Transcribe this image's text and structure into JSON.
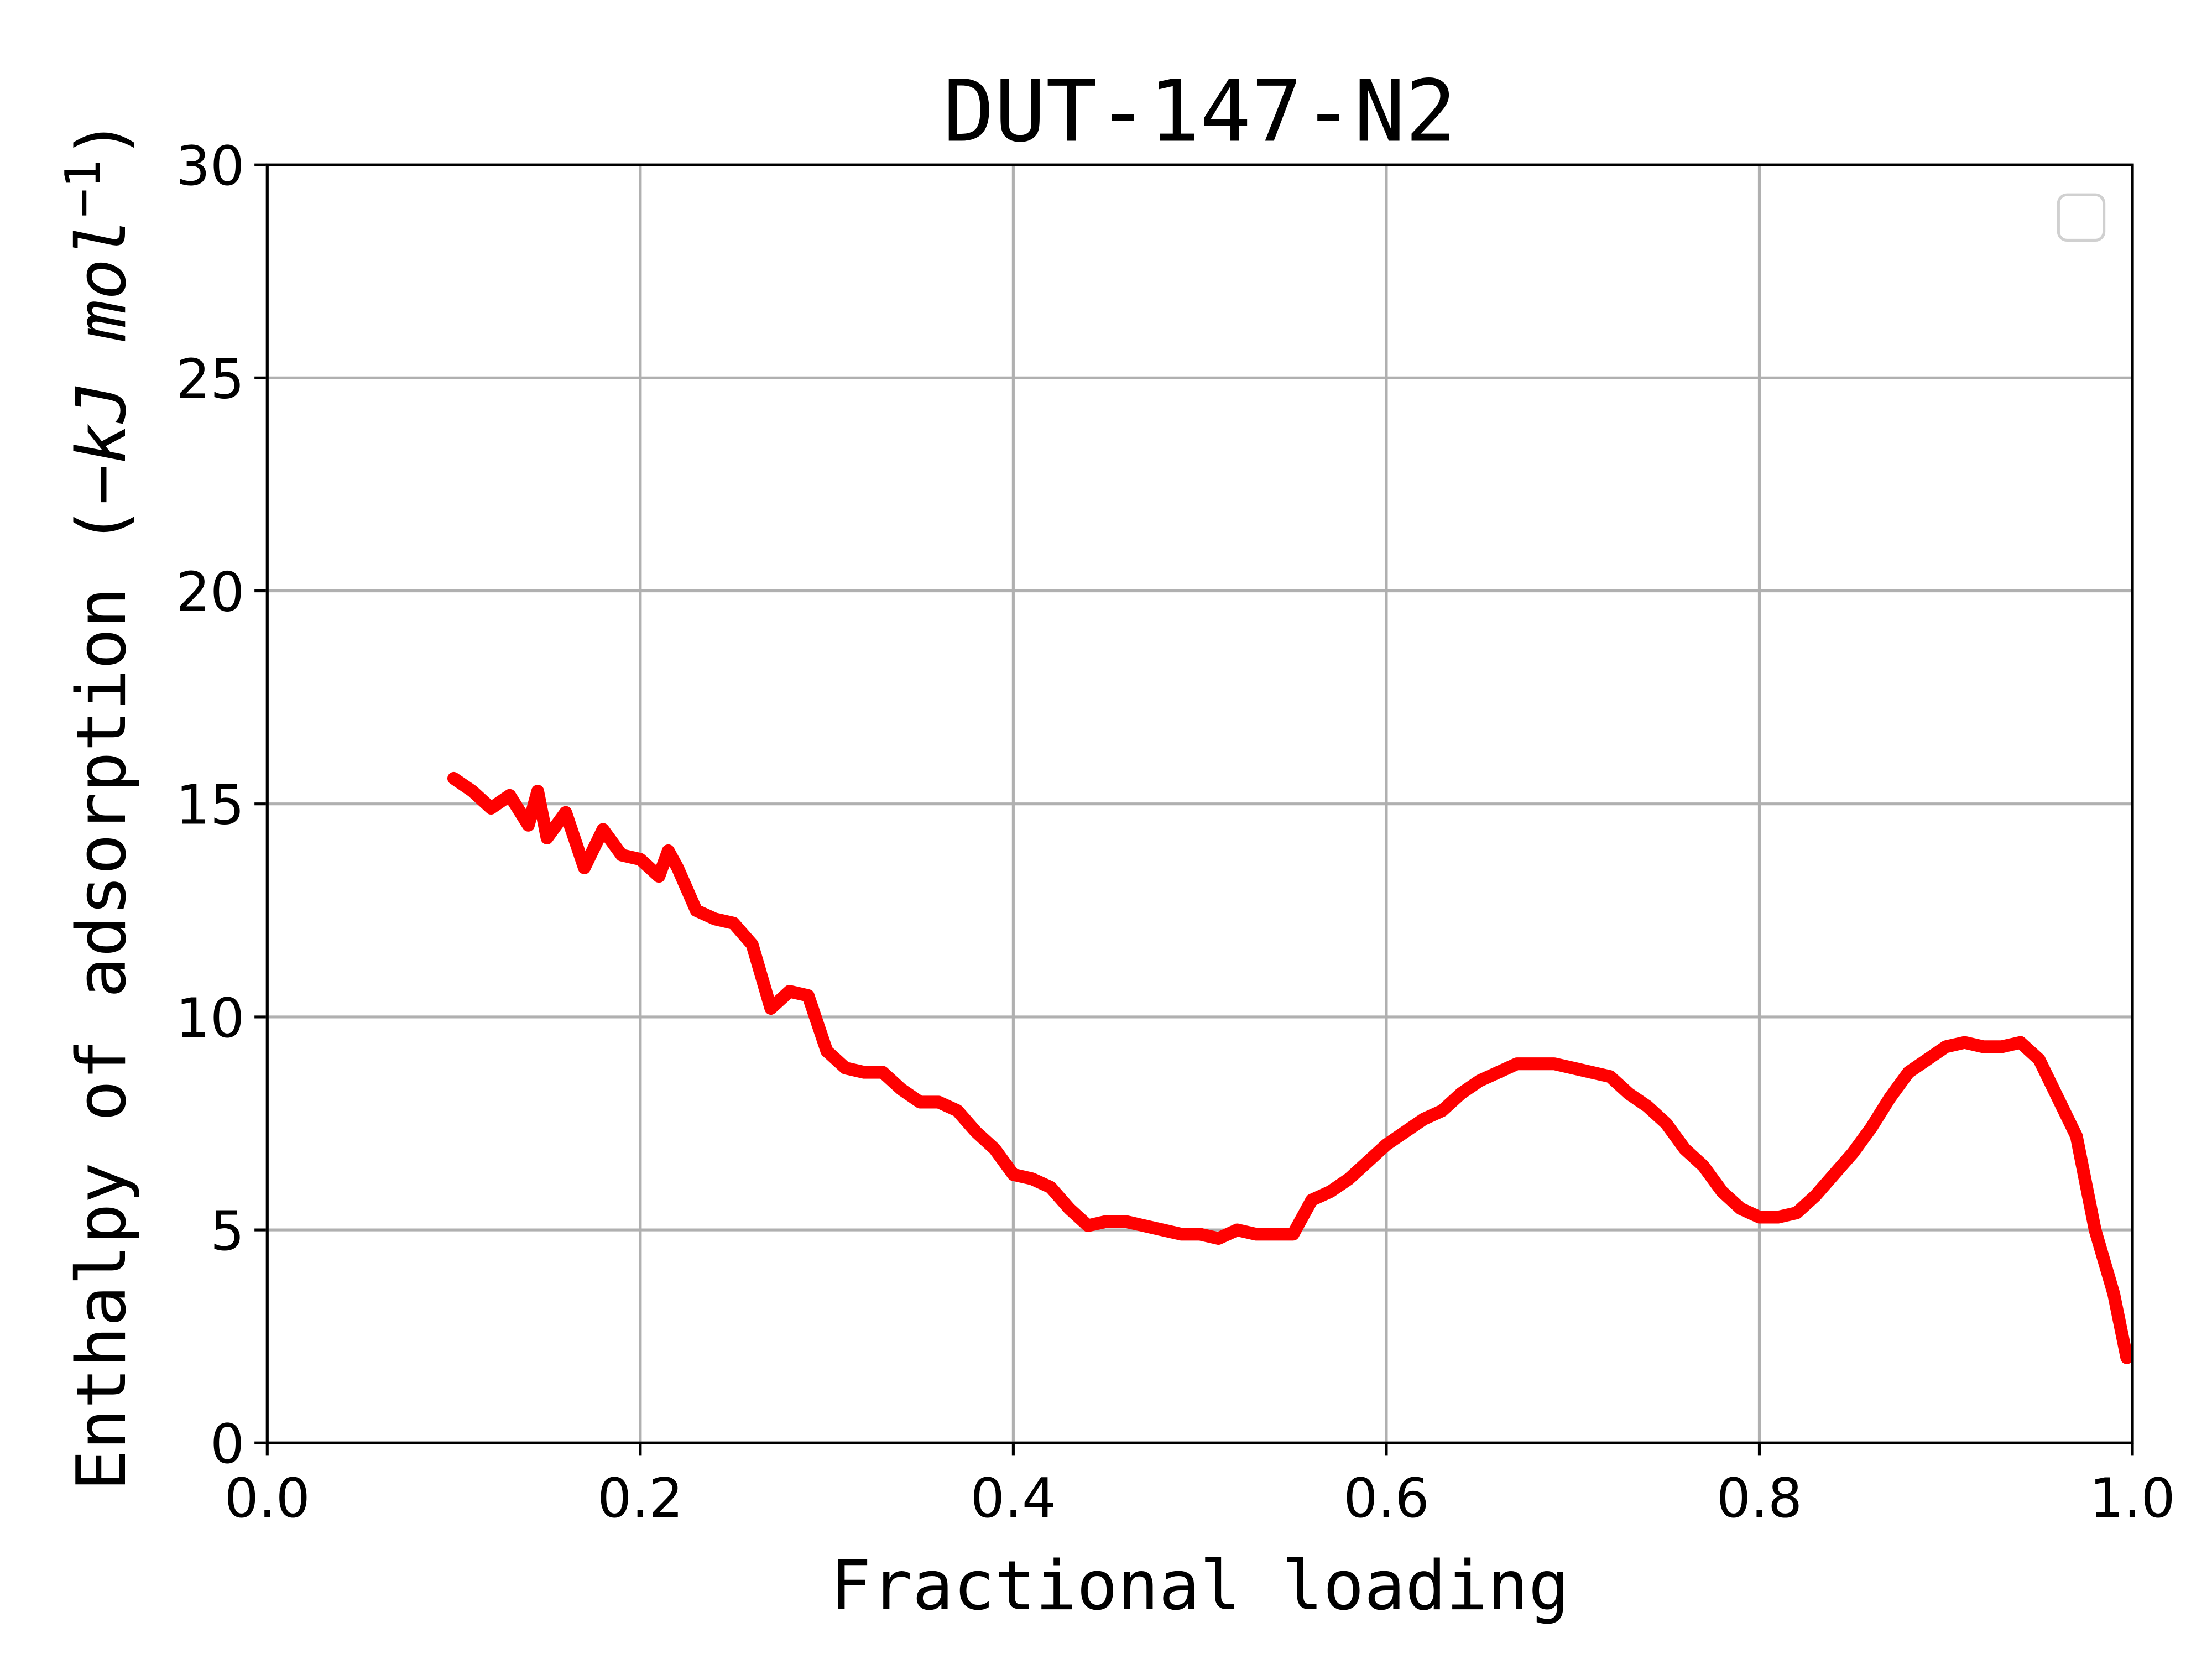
{
  "chart_data": {
    "type": "line",
    "title": "DUT-147-N2",
    "x_label": "Fractional loading",
    "y_label": {
      "text": "Enthalpy of adsorption (",
      "unit": "−kJ mol",
      "superscript": "−1",
      "suffix": ")"
    },
    "x": [
      0.1,
      0.11,
      0.12,
      0.13,
      0.14,
      0.145,
      0.15,
      0.16,
      0.17,
      0.18,
      0.19,
      0.2,
      0.21,
      0.215,
      0.22,
      0.23,
      0.24,
      0.25,
      0.26,
      0.27,
      0.28,
      0.29,
      0.3,
      0.31,
      0.32,
      0.33,
      0.34,
      0.35,
      0.36,
      0.37,
      0.38,
      0.39,
      0.4,
      0.41,
      0.42,
      0.43,
      0.44,
      0.45,
      0.46,
      0.47,
      0.48,
      0.49,
      0.5,
      0.51,
      0.52,
      0.53,
      0.54,
      0.55,
      0.56,
      0.57,
      0.58,
      0.59,
      0.6,
      0.61,
      0.62,
      0.63,
      0.64,
      0.65,
      0.66,
      0.67,
      0.68,
      0.69,
      0.7,
      0.71,
      0.72,
      0.73,
      0.74,
      0.75,
      0.76,
      0.77,
      0.78,
      0.79,
      0.8,
      0.81,
      0.82,
      0.83,
      0.84,
      0.85,
      0.86,
      0.87,
      0.88,
      0.89,
      0.9,
      0.91,
      0.92,
      0.93,
      0.94,
      0.95,
      0.96,
      0.97,
      0.98,
      0.99,
      0.997
    ],
    "values": [
      15.6,
      15.3,
      14.9,
      15.2,
      14.5,
      15.3,
      14.2,
      14.8,
      13.5,
      14.4,
      13.8,
      13.7,
      13.3,
      13.9,
      13.5,
      12.5,
      12.3,
      12.2,
      11.7,
      10.2,
      10.6,
      10.5,
      9.2,
      8.8,
      8.7,
      8.7,
      8.3,
      8.0,
      8.0,
      7.8,
      7.3,
      6.9,
      6.3,
      6.2,
      6.0,
      5.5,
      5.1,
      5.2,
      5.2,
      5.1,
      5.0,
      4.9,
      4.9,
      4.8,
      5.0,
      4.9,
      4.9,
      4.9,
      5.7,
      5.9,
      6.2,
      6.6,
      7.0,
      7.3,
      7.6,
      7.8,
      8.2,
      8.5,
      8.7,
      8.9,
      8.9,
      8.9,
      8.8,
      8.7,
      8.6,
      8.2,
      7.9,
      7.5,
      6.9,
      6.5,
      5.9,
      5.5,
      5.3,
      5.3,
      5.4,
      5.8,
      6.3,
      6.8,
      7.4,
      8.1,
      8.7,
      9.0,
      9.3,
      9.4,
      9.3,
      9.3,
      9.4,
      9.0,
      8.1,
      7.2,
      5.0,
      3.5,
      2.0
    ],
    "color": "#ff0000",
    "xlim": [
      0,
      1
    ],
    "ylim": [
      0,
      30
    ],
    "xticks": [
      {
        "value": 0,
        "label": "0.0"
      },
      0.2,
      0.4,
      0.6,
      0.8,
      {
        "value": 1,
        "label": "1.0"
      }
    ],
    "yticks": [
      0,
      5,
      10,
      15,
      20,
      25,
      30
    ],
    "grid": true,
    "legend": "upper right"
  }
}
